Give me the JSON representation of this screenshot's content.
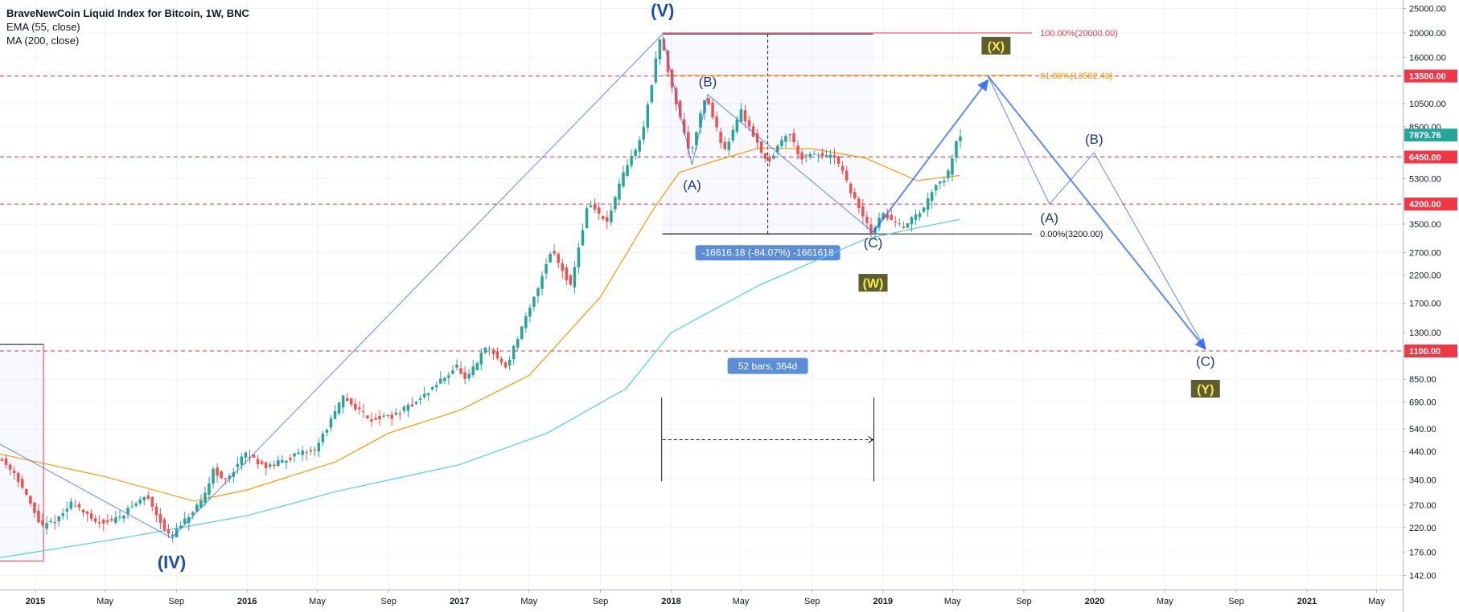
{
  "legend": {
    "title": "BraveNewCoin Liquid Index for Bitcoin, 1W, BNC",
    "ema": "EMA (55, close)",
    "ma": "MA (200, close)"
  },
  "chart_data": {
    "type": "candlestick",
    "y_scale": "log",
    "ylim": [
      125,
      27000
    ],
    "xlim": [
      "2014-11-01",
      "2021-06-15"
    ],
    "price_ticks": [
      142,
      176,
      220,
      270,
      340,
      440,
      540,
      690,
      850,
      1300,
      1700,
      2200,
      2700,
      3500,
      4200,
      5300,
      6450,
      8500,
      10500,
      13500,
      16000,
      20000,
      25000
    ],
    "price_tick_labels": [
      "142.00",
      "176.00",
      "220.00",
      "270.00",
      "340.00",
      "440.00",
      "540.00",
      "690.00",
      "850.00",
      "1300.00",
      "1700.00",
      "2200.00",
      "2700.00",
      "3500.00",
      "4200.00",
      "5300.00",
      "6450.00",
      "8500.00",
      "10500.00",
      "13500.00",
      "16000.00",
      "20000.00",
      "25000.00"
    ],
    "time_ticks": [
      {
        "date": "2015-01-01",
        "label": "2015",
        "bold": true
      },
      {
        "date": "2015-05-01",
        "label": "May",
        "bold": false
      },
      {
        "date": "2015-09-01",
        "label": "Sep",
        "bold": false
      },
      {
        "date": "2016-01-01",
        "label": "2016",
        "bold": true
      },
      {
        "date": "2016-05-01",
        "label": "May",
        "bold": false
      },
      {
        "date": "2016-09-01",
        "label": "Sep",
        "bold": false
      },
      {
        "date": "2017-01-01",
        "label": "2017",
        "bold": true
      },
      {
        "date": "2017-05-01",
        "label": "May",
        "bold": false
      },
      {
        "date": "2017-09-01",
        "label": "Sep",
        "bold": false
      },
      {
        "date": "2018-01-01",
        "label": "2018",
        "bold": true
      },
      {
        "date": "2018-05-01",
        "label": "May",
        "bold": false
      },
      {
        "date": "2018-09-01",
        "label": "Sep",
        "bold": false
      },
      {
        "date": "2019-01-01",
        "label": "2019",
        "bold": true
      },
      {
        "date": "2019-05-01",
        "label": "May",
        "bold": false
      },
      {
        "date": "2019-09-01",
        "label": "Sep",
        "bold": false
      },
      {
        "date": "2020-01-01",
        "label": "2020",
        "bold": true
      },
      {
        "date": "2020-05-01",
        "label": "May",
        "bold": false
      },
      {
        "date": "2020-09-01",
        "label": "Sep",
        "bold": false
      },
      {
        "date": "2021-01-01",
        "label": "2021",
        "bold": true
      },
      {
        "date": "2021-05-01",
        "label": "May",
        "bold": false
      }
    ],
    "price_path": [
      [
        "2014-11-01",
        420
      ],
      [
        "2014-12-01",
        360
      ],
      [
        "2015-01-15",
        220
      ],
      [
        "2015-02-15",
        240
      ],
      [
        "2015-03-10",
        280
      ],
      [
        "2015-04-15",
        230
      ],
      [
        "2015-05-20",
        235
      ],
      [
        "2015-07-15",
        295
      ],
      [
        "2015-08-24",
        200
      ],
      [
        "2015-09-20",
        235
      ],
      [
        "2015-10-20",
        280
      ],
      [
        "2015-11-08",
        380
      ],
      [
        "2015-11-25",
        330
      ],
      [
        "2016-01-01",
        430
      ],
      [
        "2016-02-10",
        380
      ],
      [
        "2016-03-15",
        415
      ],
      [
        "2016-05-01",
        450
      ],
      [
        "2016-06-18",
        720
      ],
      [
        "2016-08-05",
        590
      ],
      [
        "2016-09-15",
        610
      ],
      [
        "2016-11-01",
        720
      ],
      [
        "2016-12-31",
        960
      ],
      [
        "2017-01-15",
        830
      ],
      [
        "2017-02-20",
        1150
      ],
      [
        "2017-03-25",
        950
      ],
      [
        "2017-05-10",
        1700
      ],
      [
        "2017-06-12",
        2800
      ],
      [
        "2017-07-15",
        2000
      ],
      [
        "2017-08-15",
        4300
      ],
      [
        "2017-09-15",
        3500
      ],
      [
        "2017-10-15",
        5600
      ],
      [
        "2017-11-15",
        7800
      ],
      [
        "2017-12-17",
        19500
      ],
      [
        "2018-01-01",
        13500
      ],
      [
        "2018-02-06",
        6600
      ],
      [
        "2018-03-05",
        11400
      ],
      [
        "2018-04-05",
        6800
      ],
      [
        "2018-05-05",
        9800
      ],
      [
        "2018-06-20",
        6100
      ],
      [
        "2018-07-25",
        8200
      ],
      [
        "2018-08-15",
        6400
      ],
      [
        "2018-09-15",
        6600
      ],
      [
        "2018-10-15",
        6400
      ],
      [
        "2018-11-20",
        4200
      ],
      [
        "2018-12-15",
        3250
      ],
      [
        "2019-01-05",
        3850
      ],
      [
        "2019-02-05",
        3400
      ],
      [
        "2019-03-15",
        4000
      ],
      [
        "2019-04-05",
        5100
      ],
      [
        "2019-04-25",
        5350
      ],
      [
        "2019-05-13",
        7880
      ]
    ],
    "ema55_path": [
      [
        "2014-11-01",
        430
      ],
      [
        "2015-05-01",
        350
      ],
      [
        "2015-10-01",
        280
      ],
      [
        "2016-01-01",
        310
      ],
      [
        "2016-06-01",
        400
      ],
      [
        "2016-09-01",
        520
      ],
      [
        "2017-01-01",
        640
      ],
      [
        "2017-05-01",
        880
      ],
      [
        "2017-09-01",
        1800
      ],
      [
        "2017-12-01",
        4000
      ],
      [
        "2018-01-15",
        5600
      ],
      [
        "2018-03-15",
        6200
      ],
      [
        "2018-06-01",
        7000
      ],
      [
        "2018-09-01",
        6950
      ],
      [
        "2018-12-01",
        6400
      ],
      [
        "2019-03-01",
        5200
      ],
      [
        "2019-05-13",
        5450
      ]
    ],
    "ma200_path": [
      [
        "2014-11-01",
        167
      ],
      [
        "2015-06-01",
        200
      ],
      [
        "2016-01-01",
        245
      ],
      [
        "2016-06-01",
        305
      ],
      [
        "2017-01-01",
        390
      ],
      [
        "2017-06-01",
        520
      ],
      [
        "2017-10-15",
        780
      ],
      [
        "2018-01-01",
        1300
      ],
      [
        "2018-06-01",
        2000
      ],
      [
        "2018-12-01",
        3050
      ],
      [
        "2019-03-01",
        3380
      ],
      [
        "2019-05-13",
        3650
      ]
    ],
    "horizontal_levels": [
      {
        "price": 13500,
        "label": "13500.00",
        "color": "#f23645"
      },
      {
        "price": 6450,
        "label": "6450.00",
        "color": "#f23645"
      },
      {
        "price": 4200,
        "label": "4200.00",
        "color": "#f23645"
      },
      {
        "price": 1100,
        "label": "1100.00",
        "color": "#f23645"
      }
    ],
    "last_price": {
      "price": 7880,
      "label": "7879.76",
      "color": "#26a69a"
    },
    "fib": {
      "start": "2017-12-17",
      "end": "2019-05-15",
      "levels": [
        {
          "price": 20000,
          "label": "100.00%(20000.00)",
          "color": "#f23645"
        },
        {
          "price": 13582.4,
          "label": "61.80%(13582.40)",
          "color": "#ff9800"
        },
        {
          "price": 3200,
          "label": "0.00%(3200.00)",
          "color": "#131722"
        }
      ]
    },
    "price_range_label": "-16616.18 (-84.07%) -1661618",
    "date_range_label": "52 bars, 364d",
    "wave_labels": [
      {
        "text": "(V)",
        "date": "2017-12-17",
        "price": 24500,
        "style": "major"
      },
      {
        "text": "(IV)",
        "date": "2015-08-24",
        "price": 160,
        "style": "major"
      },
      {
        "text": "(A)",
        "date": "2018-02-06",
        "price": 5000,
        "style": "minor"
      },
      {
        "text": "(B)",
        "date": "2018-03-05",
        "price": 12800,
        "style": "minor"
      },
      {
        "text": "(C)",
        "date": "2018-12-15",
        "price": 2950,
        "style": "minor"
      },
      {
        "text": "(W)",
        "date": "2018-12-15",
        "price": 2050,
        "style": "box"
      },
      {
        "text": "(X)",
        "date": "2019-07-15",
        "price": 17800,
        "style": "box"
      },
      {
        "text": "(A)",
        "date": "2019-10-15",
        "price": 3700,
        "style": "minor"
      },
      {
        "text": "(B)",
        "date": "2019-12-31",
        "price": 7600,
        "style": "minor"
      },
      {
        "text": "(C)",
        "date": "2020-07-10",
        "price": 1000,
        "style": "minor"
      },
      {
        "text": "(Y)",
        "date": "2020-07-10",
        "price": 780,
        "style": "box"
      }
    ],
    "wave_lines": [
      {
        "points": [
          [
            "2015-08-24",
            200
          ],
          [
            "2017-12-17",
            19800
          ]
        ],
        "width": 1
      },
      {
        "points": [
          [
            "2014-11-01",
            470
          ],
          [
            "2015-08-24",
            200
          ]
        ],
        "width": 1
      },
      {
        "points": [
          [
            "2017-12-17",
            19500
          ],
          [
            "2018-02-06",
            6000
          ],
          [
            "2018-03-05",
            11400
          ],
          [
            "2018-12-15",
            3250
          ]
        ],
        "width": 1
      },
      {
        "points": [
          [
            "2018-12-15",
            3250
          ],
          [
            "2019-07-01",
            13000
          ]
        ],
        "width": 2,
        "arrow": true
      },
      {
        "points": [
          [
            "2019-07-01",
            13500
          ],
          [
            "2019-10-15",
            4200
          ],
          [
            "2019-12-31",
            6700
          ],
          [
            "2020-07-10",
            1120
          ]
        ],
        "width": 1
      },
      {
        "points": [
          [
            "2019-07-01",
            13500
          ],
          [
            "2020-07-10",
            1120
          ]
        ],
        "width": 2,
        "arrow": true
      }
    ]
  }
}
